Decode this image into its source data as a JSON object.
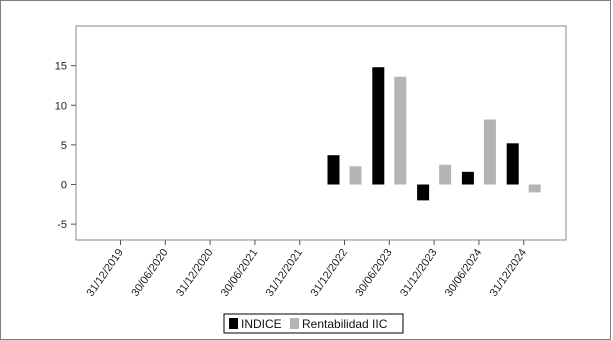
{
  "chart_data": {
    "type": "bar",
    "title": "",
    "xlabel": "",
    "ylabel": "",
    "categories": [
      "31/12/2019",
      "30/06/2020",
      "31/12/2020",
      "30/06/2021",
      "31/12/2021",
      "31/12/2022",
      "30/06/2023",
      "31/12/2023",
      "30/06/2024",
      "31/12/2024"
    ],
    "series": [
      {
        "name": "INDICE",
        "color": "#000000",
        "values": [
          null,
          null,
          null,
          null,
          null,
          3.7,
          14.8,
          -2.0,
          1.6,
          5.2
        ]
      },
      {
        "name": "Rentabilidad IIC",
        "color": "#b4b4b4",
        "values": [
          null,
          null,
          null,
          null,
          null,
          2.3,
          13.6,
          2.5,
          8.2,
          -1.0
        ]
      }
    ],
    "ylim": [
      -7,
      20
    ],
    "yticks": [
      -5,
      0,
      5,
      10,
      15
    ],
    "grid": false,
    "legend_position": "bottom"
  }
}
